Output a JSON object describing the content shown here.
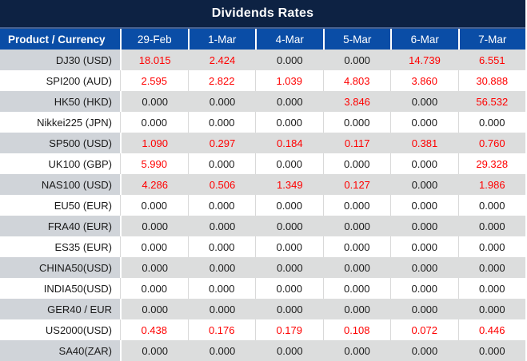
{
  "title": "Dividends Rates",
  "colors": {
    "title_bg": "#0d2243",
    "title_divider": "#47618e",
    "header_bg": "#0a4da6",
    "stripe_product": "#d0d4d9",
    "stripe_value": "#dcdddd",
    "nonzero_text": "#ff0000",
    "zero_text": "#1a1a1a"
  },
  "chart_data": {
    "type": "table",
    "title": "Dividends Rates",
    "corner_header": "Product / Currency",
    "columns": [
      "29-Feb",
      "1-Mar",
      "4-Mar",
      "5-Mar",
      "6-Mar",
      "7-Mar"
    ],
    "rows": [
      {
        "product": "DJ30 (USD)",
        "values": [
          "18.015",
          "2.424",
          "0.000",
          "0.000",
          "14.739",
          "6.551"
        ]
      },
      {
        "product": "SPI200 (AUD)",
        "values": [
          "2.595",
          "2.822",
          "1.039",
          "4.803",
          "3.860",
          "30.888"
        ]
      },
      {
        "product": "HK50 (HKD)",
        "values": [
          "0.000",
          "0.000",
          "0.000",
          "3.846",
          "0.000",
          "56.532"
        ]
      },
      {
        "product": "Nikkei225 (JPN)",
        "values": [
          "0.000",
          "0.000",
          "0.000",
          "0.000",
          "0.000",
          "0.000"
        ]
      },
      {
        "product": "SP500 (USD)",
        "values": [
          "1.090",
          "0.297",
          "0.184",
          "0.117",
          "0.381",
          "0.760"
        ]
      },
      {
        "product": "UK100 (GBP)",
        "values": [
          "5.990",
          "0.000",
          "0.000",
          "0.000",
          "0.000",
          "29.328"
        ]
      },
      {
        "product": "NAS100 (USD)",
        "values": [
          "4.286",
          "0.506",
          "1.349",
          "0.127",
          "0.000",
          "1.986"
        ]
      },
      {
        "product": "EU50 (EUR)",
        "values": [
          "0.000",
          "0.000",
          "0.000",
          "0.000",
          "0.000",
          "0.000"
        ]
      },
      {
        "product": "FRA40 (EUR)",
        "values": [
          "0.000",
          "0.000",
          "0.000",
          "0.000",
          "0.000",
          "0.000"
        ]
      },
      {
        "product": "ES35 (EUR)",
        "values": [
          "0.000",
          "0.000",
          "0.000",
          "0.000",
          "0.000",
          "0.000"
        ]
      },
      {
        "product": "CHINA50(USD)",
        "values": [
          "0.000",
          "0.000",
          "0.000",
          "0.000",
          "0.000",
          "0.000"
        ]
      },
      {
        "product": "INDIA50(USD)",
        "values": [
          "0.000",
          "0.000",
          "0.000",
          "0.000",
          "0.000",
          "0.000"
        ]
      },
      {
        "product": "GER40 / EUR",
        "values": [
          "0.000",
          "0.000",
          "0.000",
          "0.000",
          "0.000",
          "0.000"
        ]
      },
      {
        "product": "US2000(USD)",
        "values": [
          "0.438",
          "0.176",
          "0.179",
          "0.108",
          "0.072",
          "0.446"
        ]
      },
      {
        "product": "SA40(ZAR)",
        "values": [
          "0.000",
          "0.000",
          "0.000",
          "0.000",
          "0.000",
          "0.000"
        ]
      }
    ]
  }
}
